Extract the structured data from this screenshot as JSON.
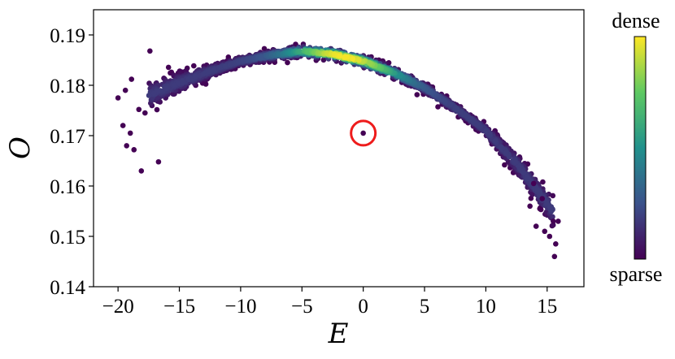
{
  "chart_data": {
    "type": "scatter",
    "title": "",
    "xlabel": "E",
    "ylabel": "O",
    "xlim": [
      -22,
      18
    ],
    "ylim": [
      0.14,
      0.195
    ],
    "xticks": [
      -20,
      -15,
      -10,
      -5,
      0,
      5,
      10,
      15
    ],
    "xtick_labels": [
      "−20",
      "−15",
      "−10",
      "−5",
      "0",
      "5",
      "10",
      "15"
    ],
    "yticks": [
      0.14,
      0.15,
      0.16,
      0.17,
      0.18,
      0.19
    ],
    "ytick_labels": [
      "0.14",
      "0.15",
      "0.16",
      "0.17",
      "0.18",
      "0.19"
    ],
    "grid": false,
    "colormap": "viridis",
    "colorbar": {
      "top_label": "dense",
      "bottom_label": "sparse"
    },
    "curve_points": {
      "x": [
        -17,
        -15,
        -12.5,
        -10,
        -7.5,
        -5,
        -2.5,
        0,
        2.5,
        5,
        7.5,
        10,
        12.5,
        15
      ],
      "y": [
        0.1785,
        0.1805,
        0.1828,
        0.1848,
        0.186,
        0.1868,
        0.1862,
        0.1848,
        0.1825,
        0.1795,
        0.1755,
        0.171,
        0.1645,
        0.1565
      ]
    },
    "outlier_points": {
      "x": [
        -20,
        -19.6,
        -19.3,
        -19,
        -18.7,
        -18.3,
        -18.1,
        -17.8,
        -17.4,
        -16.7,
        -19.4,
        -18.9,
        13.6,
        14.1,
        14.4,
        14.8,
        15.2,
        15.5,
        15.6,
        15.7,
        15.9,
        14.6,
        13.9
      ],
      "y": [
        0.1775,
        0.172,
        0.168,
        0.1705,
        0.1672,
        0.1752,
        0.163,
        0.1745,
        0.1868,
        0.1648,
        0.179,
        0.1812,
        0.156,
        0.152,
        0.1555,
        0.151,
        0.15,
        0.153,
        0.146,
        0.1485,
        0.153,
        0.1575,
        0.1605
      ]
    },
    "highlight": {
      "x": 0,
      "y": 0.1705,
      "marker": "red-circle",
      "color": "#ee1c1c"
    }
  }
}
